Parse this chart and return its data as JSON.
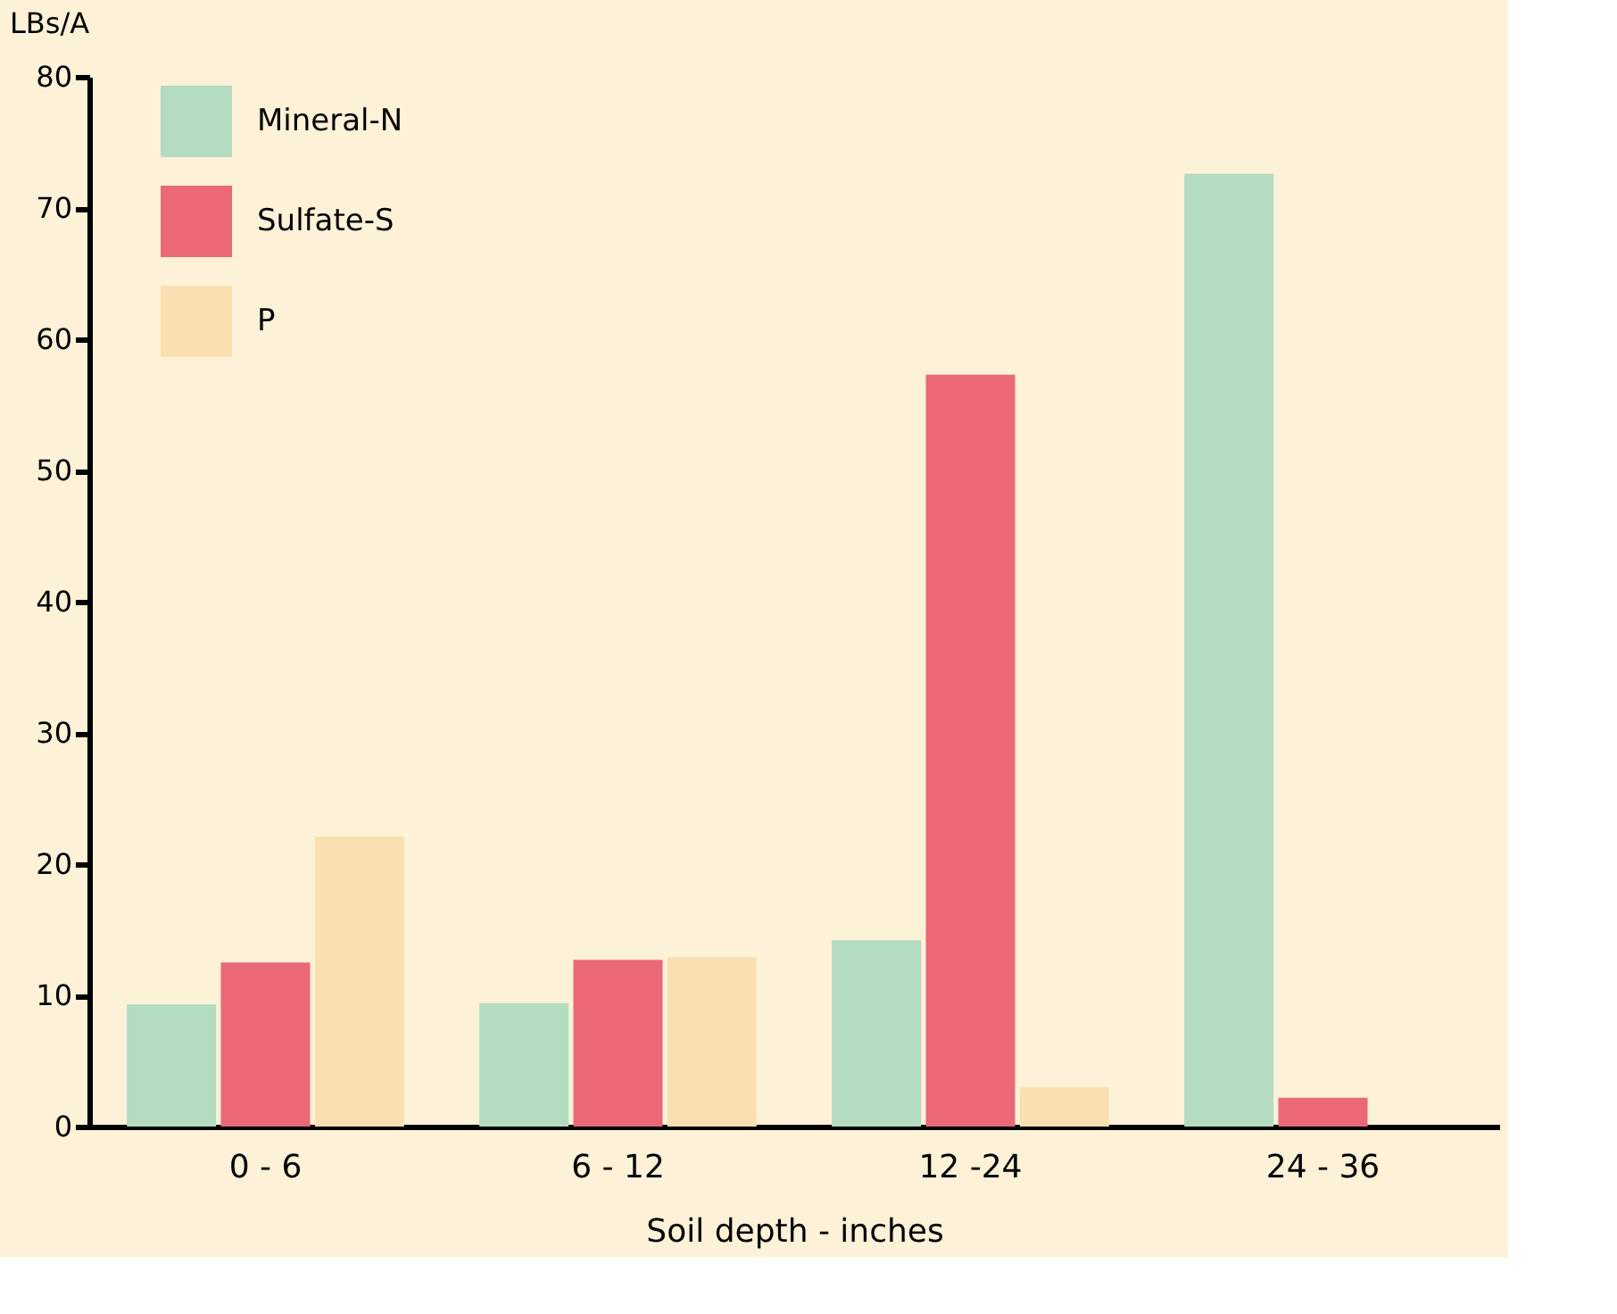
{
  "chart_data": {
    "type": "bar",
    "xlabel": "Soil depth - inches",
    "ylabel": "LBs/A",
    "categories": [
      "0 - 6",
      "6 - 12",
      "12 -24",
      "24 - 36"
    ],
    "series": [
      {
        "name": "Mineral-N",
        "color": "#b3dcc1",
        "values": [
          9.3,
          9.4,
          14.2,
          72.6
        ]
      },
      {
        "name": "Sulfate-S",
        "color": "#ea6878",
        "values": [
          12.5,
          12.7,
          57.3,
          2.2
        ]
      },
      {
        "name": "P",
        "color": "#fadfb0",
        "values": [
          22.1,
          12.9,
          3.0,
          null
        ]
      }
    ],
    "ylim": [
      0,
      80
    ],
    "yticks": [
      0,
      10,
      20,
      30,
      40,
      50,
      60,
      70,
      80
    ],
    "grid": false,
    "legend": "top left"
  }
}
